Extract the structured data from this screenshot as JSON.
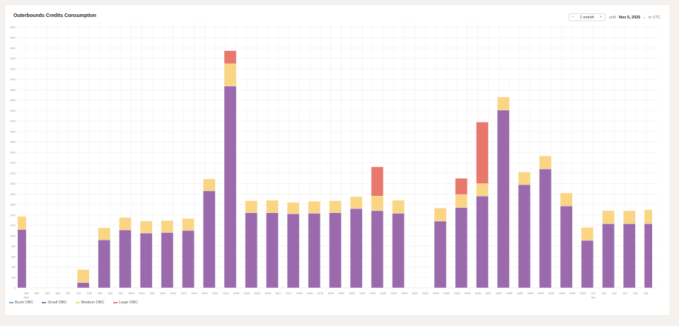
{
  "header": {
    "title": "Outerbounds Credits Consumption",
    "range_value": "1 month",
    "decrement_icon": "minus-icon",
    "increment_icon": "plus-icon",
    "until_label": "until",
    "end_date": "Nov 5, 2025",
    "timezone_label": "in UTC"
  },
  "chart_data": {
    "type": "bar",
    "stacked": true,
    "title": "Outerbounds Credits Consumption",
    "ylim": [
      0,
      5000
    ],
    "y_ticks": [
      0,
      200,
      400,
      600,
      800,
      1000,
      1200,
      1400,
      1600,
      1800,
      2000,
      2200,
      2400,
      2600,
      2800,
      3000,
      3200,
      3400,
      3600,
      3800,
      4000,
      4200,
      4400,
      4600,
      4800,
      5000
    ],
    "grid": true,
    "legend_position": "bottom-left",
    "x_tick_labels": [
      "10/5",
      "10/5",
      "10/6",
      "10/6",
      "10/7",
      "10/7",
      "10/8",
      "10/8",
      "10/9",
      "10/9",
      "10/10",
      "10/10",
      "10/11",
      "10/11",
      "10/12",
      "10/12",
      "10/13",
      "10/13",
      "10/14",
      "10/14",
      "10/15",
      "10/15",
      "10/16",
      "10/16",
      "10/17",
      "10/17",
      "10/18",
      "10/18",
      "10/19",
      "10/19",
      "10/20",
      "10/20",
      "10/21",
      "10/21",
      "10/22",
      "10/22",
      "10/23",
      "10/23",
      "10/24",
      "10/24",
      "10/25",
      "10/25",
      "10/26",
      "10/26",
      "10/27",
      "10/27",
      "10/28",
      "10/28",
      "10/29",
      "10/29",
      "10/30",
      "10/30",
      "10/31",
      "10/31",
      "11/1",
      "11/1",
      "11/2",
      "11/2",
      "11/3",
      "11/3"
    ],
    "x_sub_labels": {
      "0": "2025",
      "54": "Nov"
    },
    "categories": [
      "10/5",
      "10/6",
      "10/7",
      "10/8",
      "10/9",
      "10/10",
      "10/11",
      "10/12",
      "10/13",
      "10/14",
      "10/15",
      "10/16",
      "10/17",
      "10/18",
      "10/19",
      "10/20",
      "10/21",
      "10/22",
      "10/23",
      "10/24",
      "10/25",
      "10/26",
      "10/27",
      "10/28",
      "10/29",
      "10/30",
      "10/31",
      "11/1",
      "11/2",
      "11/3",
      "11/4"
    ],
    "series": [
      {
        "name": "Burst OBC",
        "color": "#6fa8dc",
        "values": [
          0,
          0,
          0,
          0,
          0,
          0,
          0,
          0,
          0,
          0,
          0,
          0,
          0,
          0,
          0,
          0,
          0,
          0,
          0,
          0,
          0,
          0,
          0,
          0,
          0,
          0,
          0,
          0,
          0,
          0,
          0
        ]
      },
      {
        "name": "Small OBC",
        "color": "#9a6aad",
        "values": [
          1120,
          0,
          0,
          100,
          920,
          1110,
          1050,
          1060,
          1100,
          1860,
          3870,
          1440,
          1440,
          1420,
          1430,
          1440,
          1520,
          1480,
          1430,
          0,
          1280,
          1540,
          1760,
          3410,
          1980,
          2280,
          1570,
          910,
          1230,
          1230,
          1230
        ]
      },
      {
        "name": "Medium OBC",
        "color": "#fad583",
        "values": [
          250,
          0,
          0,
          250,
          230,
          240,
          230,
          230,
          230,
          230,
          430,
          230,
          240,
          220,
          230,
          230,
          230,
          280,
          250,
          0,
          250,
          250,
          240,
          250,
          240,
          250,
          250,
          250,
          250,
          250,
          270
        ]
      },
      {
        "name": "Large OBC",
        "color": "#e8786b",
        "values": [
          0,
          0,
          0,
          0,
          0,
          0,
          0,
          0,
          0,
          0,
          250,
          0,
          0,
          0,
          0,
          0,
          0,
          560,
          0,
          0,
          0,
          310,
          1180,
          0,
          0,
          0,
          0,
          0,
          0,
          0,
          0
        ]
      }
    ]
  }
}
